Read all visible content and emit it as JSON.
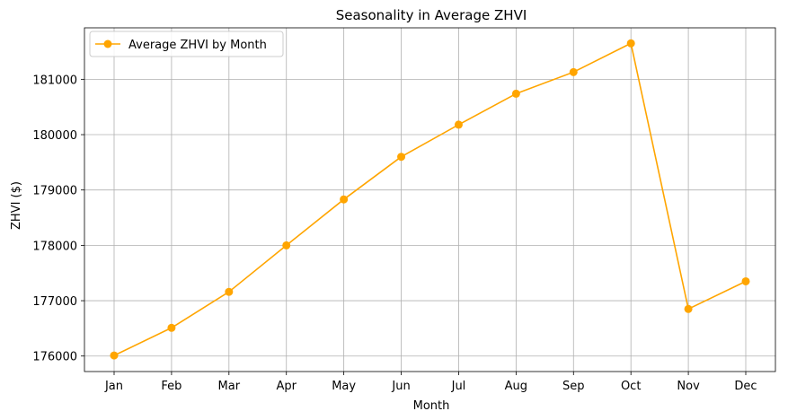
{
  "chart_data": {
    "type": "line",
    "title": "Seasonality in Average ZHVI",
    "xlabel": "Month",
    "ylabel": "ZHVI ($)",
    "categories": [
      "Jan",
      "Feb",
      "Mar",
      "Apr",
      "May",
      "Jun",
      "Jul",
      "Aug",
      "Sep",
      "Oct",
      "Nov",
      "Dec"
    ],
    "series": [
      {
        "name": "Average ZHVI by Month",
        "color": "#ffa500",
        "marker": "circle",
        "values": [
          176010,
          176510,
          177160,
          178000,
          178830,
          179600,
          180180,
          180740,
          181130,
          181650,
          176850,
          177350
        ]
      }
    ],
    "yticks": [
      176000,
      177000,
      178000,
      179000,
      180000,
      181000
    ],
    "ylim": [
      175720,
      181930
    ],
    "grid": true,
    "legend_position": "top-left"
  }
}
